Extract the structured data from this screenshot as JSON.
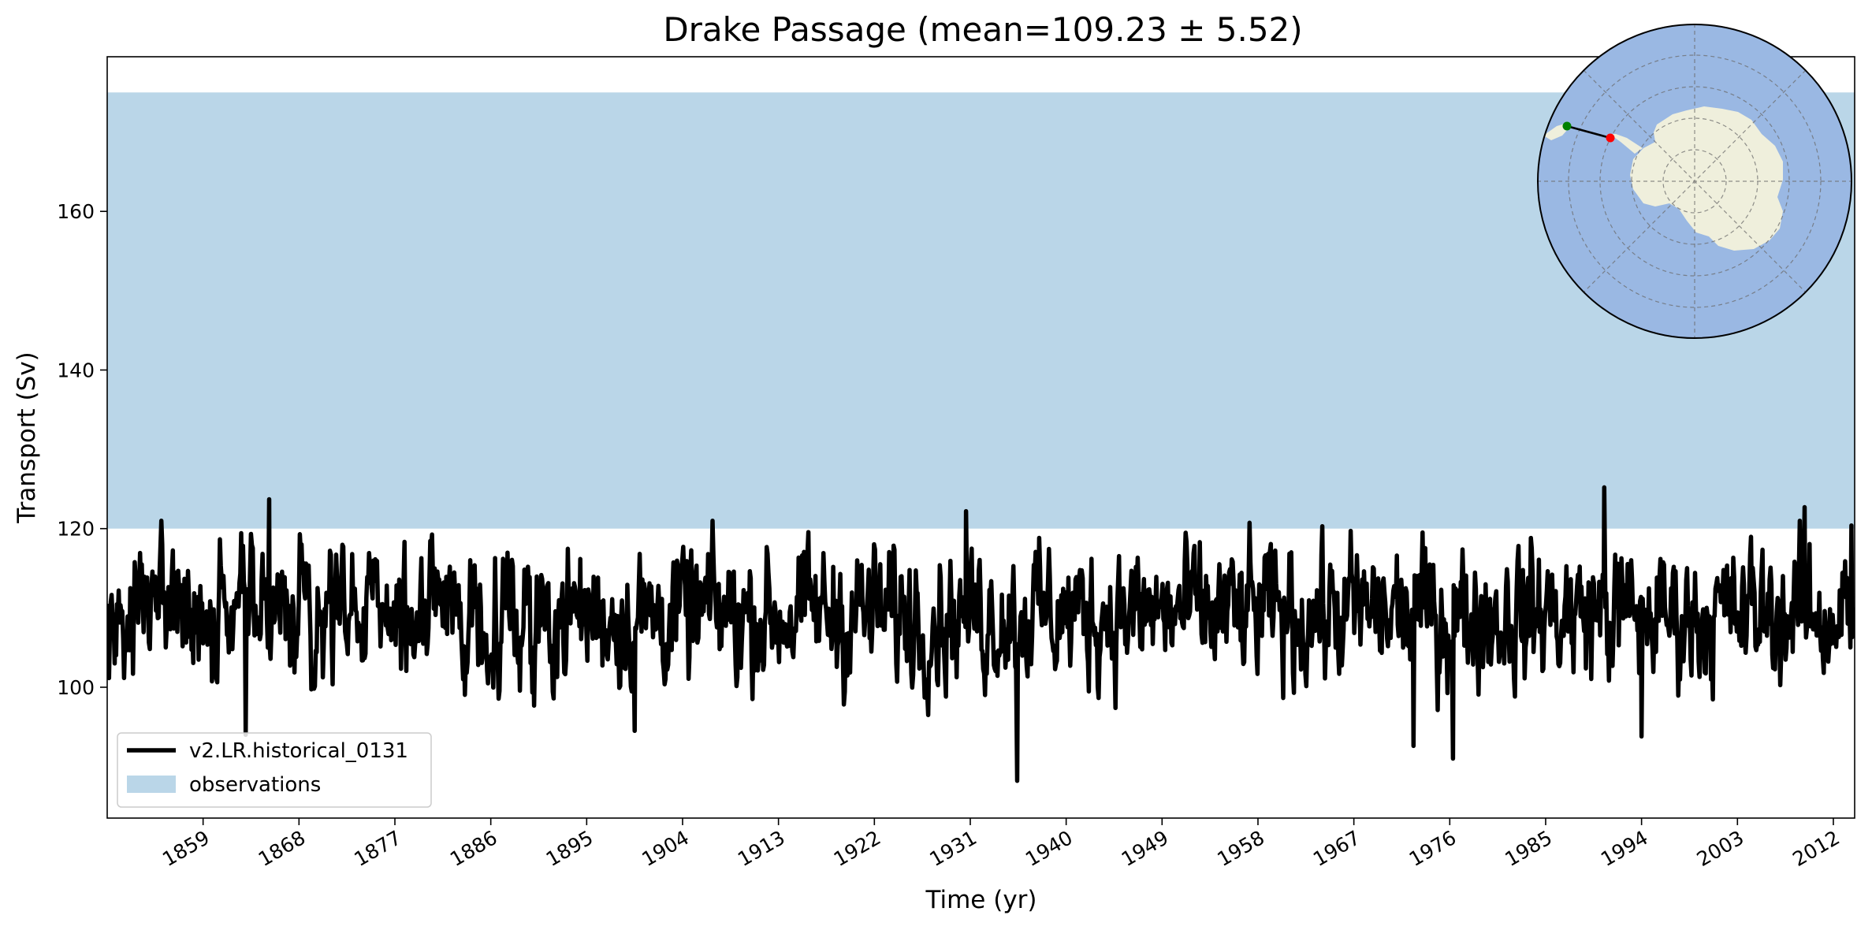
{
  "chart_data": {
    "type": "line",
    "title": "Drake Passage (mean=109.23 ± 5.52)",
    "xlabel": "Time (yr)",
    "ylabel": "Transport (Sv)",
    "xlim": [
      1850,
      2014
    ],
    "ylim": [
      83.5,
      179.5
    ],
    "x_ticks": [
      1859,
      1868,
      1877,
      1886,
      1895,
      1904,
      1913,
      1922,
      1931,
      1940,
      1949,
      1958,
      1967,
      1976,
      1985,
      1994,
      2003,
      2012
    ],
    "y_ticks": [
      100,
      120,
      140,
      160
    ],
    "grid": false,
    "legend_position": "lower-left",
    "series": [
      {
        "name": "v2.LR.historical_0131",
        "color": "#000000",
        "x_start_year": 1850,
        "x_step_years": 0.0833,
        "statistics": {
          "mean": 109.23,
          "std": 5.52
        },
        "highlighted_extremes": [
          {
            "x": 1863.0,
            "y": 94.0
          },
          {
            "x": 1865.2,
            "y": 123.7
          },
          {
            "x": 1935.4,
            "y": 88.2
          },
          {
            "x": 1990.5,
            "y": 125.2
          },
          {
            "x": 1976.3,
            "y": 91.0
          },
          {
            "x": 1972.6,
            "y": 92.6
          },
          {
            "x": 1850.7,
            "y": 103.0
          },
          {
            "x": 1899.5,
            "y": 94.5
          },
          {
            "x": 1930.6,
            "y": 122.2
          },
          {
            "x": 1994.0,
            "y": 93.8
          },
          {
            "x": 2009.3,
            "y": 122.7
          },
          {
            "x": 2013.7,
            "y": 120.4
          }
        ]
      }
    ],
    "bands": [
      {
        "name": "observations",
        "ymin": 120.0,
        "ymax": 175.0,
        "color": "#bad6e8"
      }
    ],
    "inset_map": {
      "type": "south-polar-stereographic",
      "ocean_color": "#9ab8e3",
      "land_color": "#efefdc",
      "line_color": "#000000",
      "start_marker_color": "#008000",
      "end_marker_color": "#ff0000"
    }
  }
}
